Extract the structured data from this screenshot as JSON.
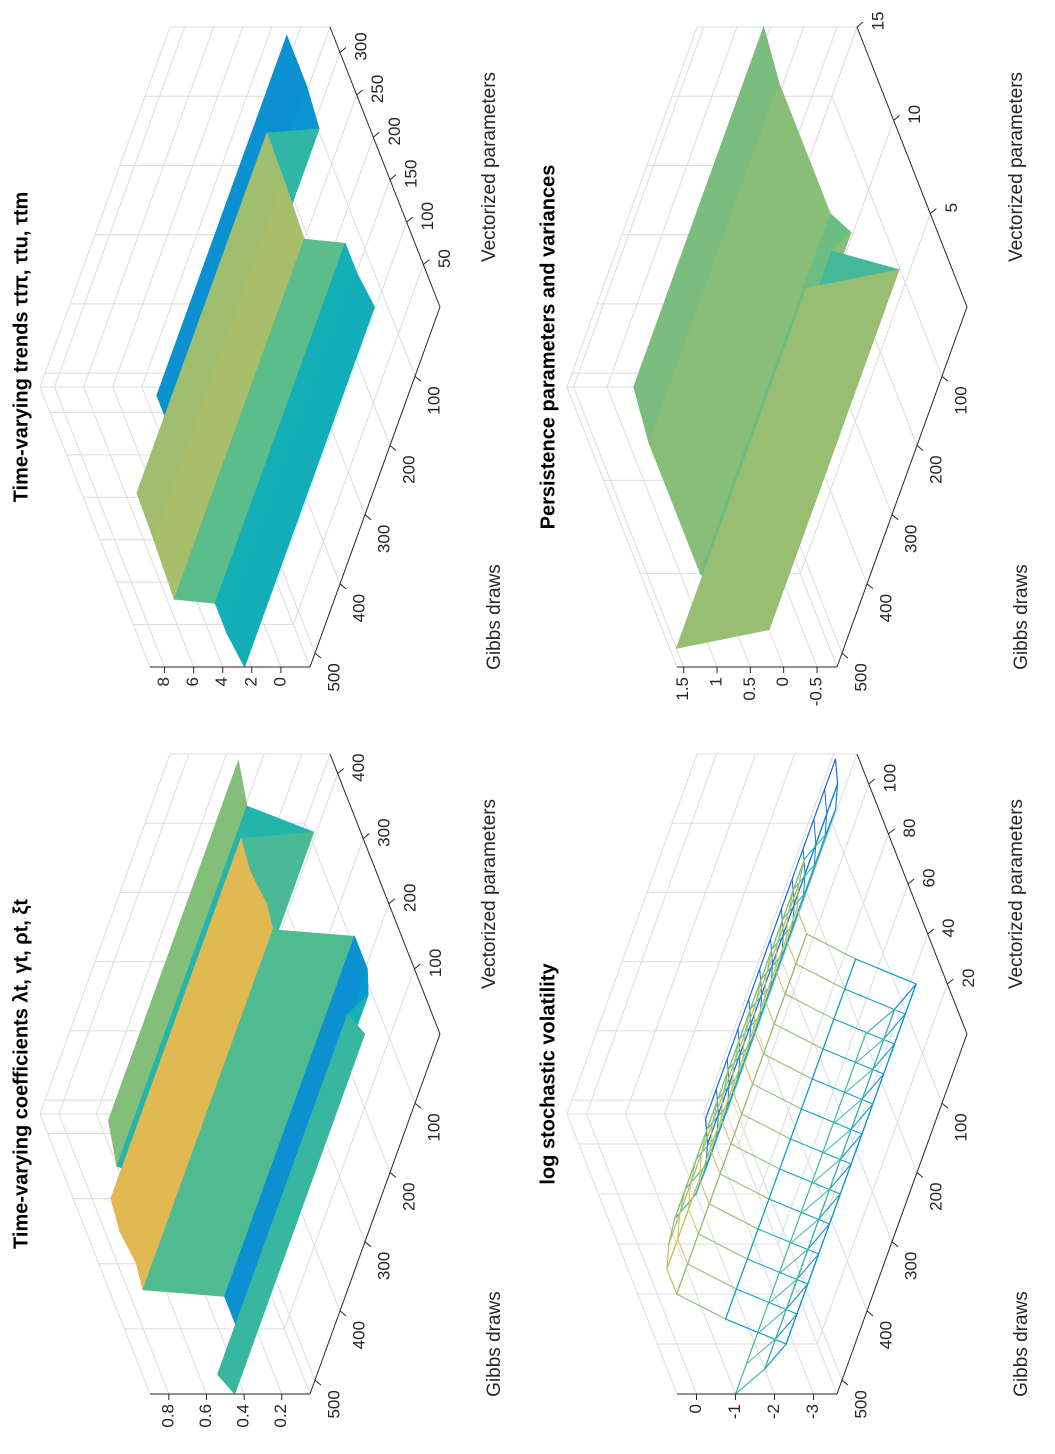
{
  "chart_data": [
    {
      "type": "surface",
      "style": "solid",
      "colormap": "parula",
      "title": "Time-varying coefficients λt, γt, ρt, ξt",
      "xlabel": "Vectorized parameters",
      "ylabel": "Gibbs draws",
      "x": [
        0,
        30,
        60,
        100,
        150,
        160,
        200,
        250,
        300,
        310,
        350,
        420
      ],
      "z": [
        0.45,
        0.5,
        0.35,
        0.3,
        0.3,
        0.72,
        0.7,
        0.72,
        0.7,
        0.3,
        0.6,
        0.55
      ],
      "xlim": [
        0,
        430
      ],
      "xticks": [
        100,
        200,
        300,
        400
      ],
      "ylim": [
        0,
        520
      ],
      "yticks": [
        100,
        200,
        300,
        400,
        500
      ],
      "zlim": [
        0.05,
        0.9
      ],
      "zticks": [
        0.2,
        0.4,
        0.6,
        0.8
      ],
      "grid": true
    },
    {
      "type": "surface",
      "style": "solid",
      "colormap": "parula",
      "title": "Time-varying trends τtπ, τtu, τtm",
      "xlabel": "Vectorized parameters",
      "ylabel": "Gibbs draws",
      "x": [
        0,
        40,
        75,
        80,
        150,
        205,
        210,
        260,
        320
      ],
      "z": [
        2.5,
        2.8,
        2.8,
        5.5,
        5.3,
        5.2,
        1.5,
        1.2,
        1.2
      ],
      "xlim": [
        0,
        330
      ],
      "xticks": [
        50,
        100,
        150,
        200,
        250,
        300
      ],
      "ylim": [
        0,
        520
      ],
      "yticks": [
        100,
        200,
        300,
        400,
        500
      ],
      "zlim": [
        -2,
        9
      ],
      "zticks": [
        0,
        2,
        4,
        6,
        8
      ],
      "grid": true
    },
    {
      "type": "surface",
      "style": "mesh",
      "colormap": "parula",
      "title": "log stochastic volatility",
      "xlabel": "Vectorized parameters",
      "ylabel": "Gibbs draws",
      "x": [
        0,
        10,
        20,
        30,
        40,
        50,
        60,
        70,
        80,
        90,
        100,
        110
      ],
      "z": [
        -1,
        -2,
        -2.8,
        -1.5,
        -0.5,
        -0.5,
        -0.8,
        -1.2,
        -2,
        -2.5,
        -2.8,
        -3
      ],
      "xlim": [
        0,
        112
      ],
      "xticks": [
        20,
        40,
        60,
        80,
        100
      ],
      "ylim": [
        0,
        520
      ],
      "yticks": [
        100,
        200,
        300,
        400,
        500
      ],
      "zlim": [
        -3.6,
        0.5
      ],
      "zticks": [
        0,
        -1,
        -2,
        -3
      ],
      "grid": true
    },
    {
      "type": "surface",
      "style": "solid",
      "colormap": "parula",
      "title": "Persistence parameters and variances",
      "xlabel": "Vectorized parameters",
      "ylabel": "Gibbs draws",
      "x": [
        1,
        2,
        3,
        4,
        5,
        12,
        15
      ],
      "z": [
        1.5,
        0,
        0.9,
        0.5,
        0.7,
        0.7,
        0.6
      ],
      "xlim": [
        0,
        15
      ],
      "xticks": [
        5,
        10,
        15
      ],
      "ylim": [
        0,
        520
      ],
      "yticks": [
        100,
        200,
        300,
        400,
        500
      ],
      "zlim": [
        -0.8,
        1.6
      ],
      "zticks": [
        -0.5,
        0,
        0.5,
        1,
        1.5
      ],
      "grid": true
    }
  ]
}
